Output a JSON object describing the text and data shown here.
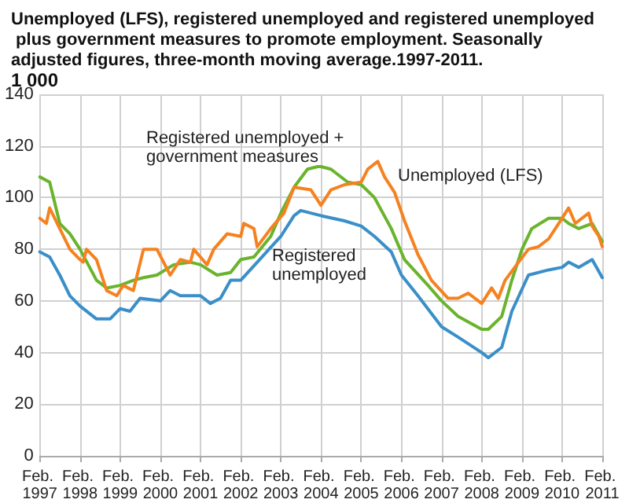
{
  "chart_data": {
    "type": "line",
    "title": "Unemployed (LFS), registered unemployed and registered unemployed plus government measures to promote employment. Seasonally adjusted figures, three-month moving average.1997-2011.",
    "ylabel": "1 000",
    "xlim": [
      "1997-02",
      "2011-02"
    ],
    "xticks": [
      {
        "value": "1997-02",
        "label": "Feb. 1997"
      },
      {
        "value": "1998-02",
        "label": "Feb. 1998"
      },
      {
        "value": "1999-02",
        "label": "Feb. 1999"
      },
      {
        "value": "2000-02",
        "label": "Feb. 2000"
      },
      {
        "value": "2001-02",
        "label": "Feb. 2001"
      },
      {
        "value": "2002-02",
        "label": "Feb. 2002"
      },
      {
        "value": "2003-02",
        "label": "Feb. 2003"
      },
      {
        "value": "2004-02",
        "label": "Feb. 2004"
      },
      {
        "value": "2005-02",
        "label": "Feb. 2005"
      },
      {
        "value": "2006-02",
        "label": "Feb. 2006"
      },
      {
        "value": "2007-02",
        "label": "Feb. 2007"
      },
      {
        "value": "2008-02",
        "label": "Feb. 2008"
      },
      {
        "value": "2009-02",
        "label": "Feb. 2009"
      },
      {
        "value": "2010-02",
        "label": "Feb. 2010"
      },
      {
        "value": "2011-02",
        "label": "Feb. 2011"
      }
    ],
    "ylim": [
      0,
      140
    ],
    "yticks": [
      0,
      20,
      40,
      60,
      80,
      100,
      120,
      140
    ],
    "grid": true,
    "legend": false,
    "marker": "none",
    "line_style": "solid",
    "series": [
      {
        "name": "Registered unemployed + government measures",
        "color": "#6ab42d",
        "x": [
          "1997-02",
          "1997-05",
          "1997-08",
          "1997-11",
          "1998-02",
          "1998-07",
          "1998-10",
          "1999-02",
          "1999-06",
          "1999-09",
          "2000-01",
          "2000-06",
          "2000-11",
          "2001-02",
          "2001-07",
          "2001-11",
          "2002-02",
          "2002-06",
          "2002-11",
          "2003-02",
          "2003-06",
          "2003-10",
          "2004-01",
          "2004-02",
          "2004-05",
          "2004-10",
          "2005-02",
          "2005-06",
          "2005-11",
          "2006-03",
          "2006-10",
          "2007-02",
          "2007-07",
          "2008-02",
          "2008-04",
          "2008-08",
          "2008-11",
          "2009-02",
          "2009-05",
          "2009-10",
          "2010-02",
          "2010-04",
          "2010-07",
          "2010-11",
          "2011-02"
        ],
        "values": [
          108,
          106,
          90,
          86,
          80,
          68,
          65,
          66,
          68,
          69,
          70,
          74,
          75,
          74,
          70,
          71,
          76,
          77,
          85,
          94,
          104,
          111,
          112,
          112,
          111,
          106,
          105,
          100,
          88,
          76,
          66,
          60,
          54,
          49,
          49,
          54,
          68,
          80,
          88,
          92,
          92,
          90,
          88,
          90,
          83
        ]
      },
      {
        "name": "Unemployed (LFS)",
        "color": "#f58220",
        "x": [
          "1997-02",
          "1997-04",
          "1997-05",
          "1997-08",
          "1997-11",
          "1998-02",
          "1998-03",
          "1998-04",
          "1998-07",
          "1998-10",
          "1999-01",
          "1999-03",
          "1999-06",
          "1999-09",
          "2000-01",
          "2000-05",
          "2000-08",
          "2000-11",
          "2000-12",
          "2001-04",
          "2001-06",
          "2001-10",
          "2002-02",
          "2002-03",
          "2002-06",
          "2002-07",
          "2002-11",
          "2003-03",
          "2003-06",
          "2003-11",
          "2004-02",
          "2004-05",
          "2004-09",
          "2005-02",
          "2005-04",
          "2005-07",
          "2005-09",
          "2005-12",
          "2006-03",
          "2006-07",
          "2006-11",
          "2007-04",
          "2007-07",
          "2007-10",
          "2008-02",
          "2008-05",
          "2008-07",
          "2008-09",
          "2009-01",
          "2009-04",
          "2009-07",
          "2009-10",
          "2010-01",
          "2010-04",
          "2010-06",
          "2010-10",
          "2010-11",
          "2011-01",
          "2011-02"
        ],
        "values": [
          92,
          90,
          96,
          88,
          80,
          76,
          75,
          80,
          76,
          64,
          62,
          66,
          64,
          80,
          80,
          70,
          76,
          75,
          80,
          74,
          80,
          86,
          85,
          90,
          88,
          81,
          88,
          94,
          104,
          103,
          97,
          103,
          105,
          106,
          111,
          114,
          108,
          102,
          91,
          78,
          68,
          61,
          61,
          63,
          59,
          65,
          61,
          68,
          75,
          80,
          81,
          84,
          90,
          96,
          90,
          94,
          89,
          85,
          81
        ]
      },
      {
        "name": "Registered unemployed",
        "color": "#3a8fc9",
        "x": [
          "1997-02",
          "1997-05",
          "1997-08",
          "1997-11",
          "1998-02",
          "1998-07",
          "1998-11",
          "1999-02",
          "1999-05",
          "1999-08",
          "2000-02",
          "2000-05",
          "2000-08",
          "2001-02",
          "2001-05",
          "2001-08",
          "2001-11",
          "2002-02",
          "2002-07",
          "2003-02",
          "2003-06",
          "2003-08",
          "2003-11",
          "2004-02",
          "2004-09",
          "2005-02",
          "2005-06",
          "2005-11",
          "2006-02",
          "2006-07",
          "2007-02",
          "2007-07",
          "2008-02",
          "2008-04",
          "2008-08",
          "2008-11",
          "2009-04",
          "2009-10",
          "2010-02",
          "2010-04",
          "2010-07",
          "2010-11",
          "2011-02"
        ],
        "values": [
          79,
          77,
          70,
          62,
          58,
          53,
          53,
          57,
          56,
          61,
          60,
          64,
          62,
          62,
          59,
          61,
          68,
          68,
          75,
          85,
          93,
          95,
          94,
          93,
          91,
          89,
          85,
          79,
          70,
          62,
          50,
          46,
          40,
          38,
          42,
          56,
          70,
          72,
          73,
          75,
          73,
          76,
          69
        ]
      }
    ]
  }
}
